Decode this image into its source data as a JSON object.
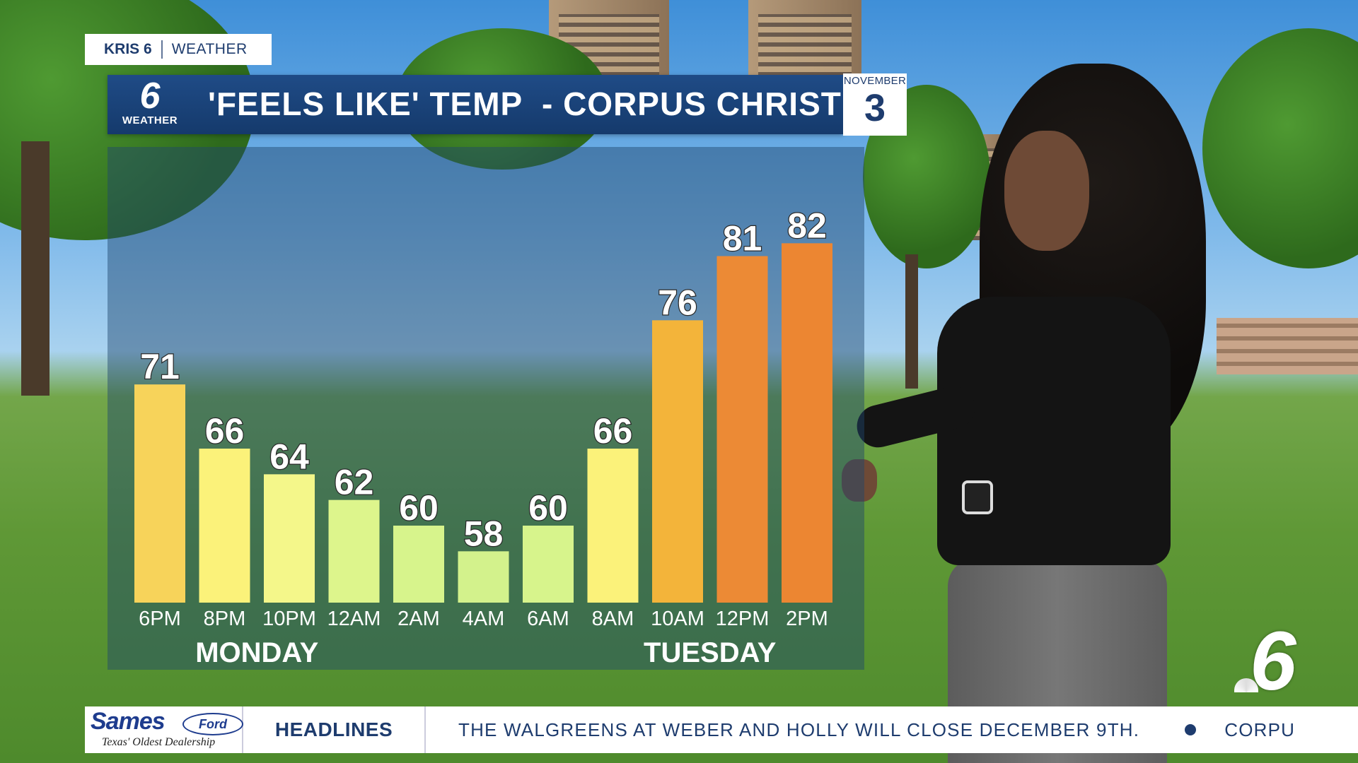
{
  "brand": {
    "station": "KRIS 6",
    "section": "WEATHER"
  },
  "header": {
    "logo_number": "6",
    "logo_label": "WEATHER",
    "title": "'FEELS LIKE' TEMP  - CORPUS CHRISTI",
    "date_month": "NOVEMBER",
    "date_day": "3"
  },
  "chart_data": {
    "type": "bar",
    "title": "'FEELS LIKE' TEMP  - CORPUS CHRISTI",
    "categories": [
      "6PM",
      "8PM",
      "10PM",
      "12AM",
      "2AM",
      "4AM",
      "6AM",
      "8AM",
      "10AM",
      "12PM",
      "2PM"
    ],
    "values": [
      71,
      66,
      64,
      62,
      60,
      58,
      60,
      66,
      76,
      81,
      82
    ],
    "colors": [
      "#f7d35a",
      "#fbf27a",
      "#f4f78a",
      "#ddf58c",
      "#d7f48c",
      "#d3f28c",
      "#d7f48c",
      "#fbf27a",
      "#f3b43a",
      "#ec8a35",
      "#ec8632"
    ],
    "day_groups": [
      {
        "label": "MONDAY",
        "start_index": 0,
        "end_index": 3
      },
      {
        "label": "TUESDAY",
        "start_index": 7,
        "end_index": 10
      }
    ],
    "ylim": [
      54,
      84
    ],
    "grid": false,
    "xlabel": "",
    "ylabel": ""
  },
  "bug": {
    "number": "6"
  },
  "ticker": {
    "sponsor_name": "Sames",
    "sponsor_badge": "Ford",
    "sponsor_tagline": "Texas' Oldest Dealership",
    "section": "HEADLINES",
    "story": "THE WALGREENS AT WEBER AND HOLLY WILL CLOSE DECEMBER 9TH.",
    "next_story": "CORPU"
  }
}
